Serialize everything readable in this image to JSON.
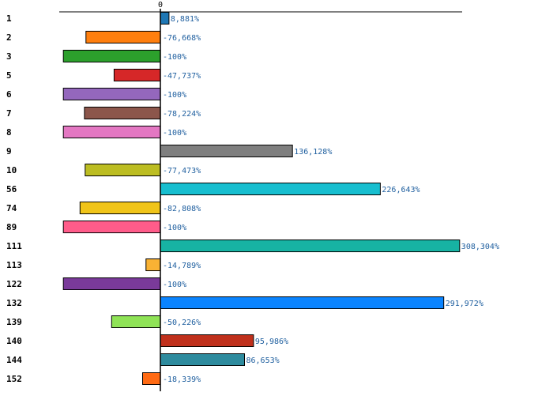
{
  "chart_data": {
    "type": "bar",
    "orientation": "horizontal",
    "title": "",
    "xlabel": "",
    "ylabel": "",
    "zero_tick_label": "0",
    "xlim": [
      -105,
      330
    ],
    "categories": [
      "1",
      "2",
      "3",
      "5",
      "6",
      "7",
      "8",
      "9",
      "10",
      "56",
      "74",
      "89",
      "111",
      "113",
      "122",
      "132",
      "139",
      "140",
      "144",
      "152"
    ],
    "values": [
      8.881,
      -76.668,
      -100,
      -47.737,
      -100,
      -78.224,
      -100,
      136.128,
      -77.473,
      226.643,
      -82.808,
      -100,
      308.304,
      -14.789,
      -100,
      291.972,
      -50.226,
      95.986,
      86.653,
      -18.339
    ],
    "value_labels": [
      "8,881%",
      "-76,668%",
      "-100%",
      "-47,737%",
      "-100%",
      "-78,224%",
      "-100%",
      "136,128%",
      "-77,473%",
      "226,643%",
      "-82,808%",
      "-100%",
      "308,304%",
      "-14,789%",
      "-100%",
      "291,972%",
      "-50,226%",
      "95,986%",
      "86,653%",
      "-18,339%"
    ],
    "colors": [
      "#1f77b4",
      "#ff7f0e",
      "#2ca02c",
      "#d62728",
      "#9467bd",
      "#8c564b",
      "#e377c2",
      "#7f7f7f",
      "#bcbd22",
      "#17becf",
      "#f0c419",
      "#ff5c8a",
      "#17b3a3",
      "#f9b234",
      "#7a3a9a",
      "#0a84ff",
      "#8fe356",
      "#c0301c",
      "#2e8b9e",
      "#ff6a13"
    ]
  }
}
